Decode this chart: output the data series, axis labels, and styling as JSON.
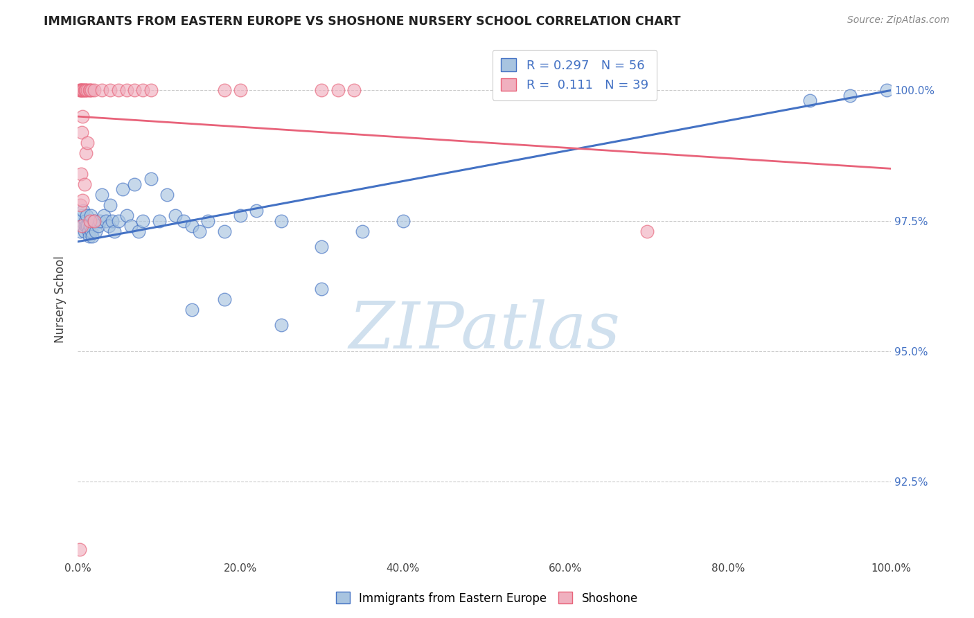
{
  "title": "IMMIGRANTS FROM EASTERN EUROPE VS SHOSHONE NURSERY SCHOOL CORRELATION CHART",
  "source": "Source: ZipAtlas.com",
  "ylabel": "Nursery School",
  "xlim": [
    0.0,
    100.0
  ],
  "ylim": [
    91.0,
    101.0
  ],
  "yticks": [
    92.5,
    95.0,
    97.5,
    100.0
  ],
  "ytick_labels": [
    "92.5%",
    "95.0%",
    "97.5%",
    "100.0%"
  ],
  "xticks": [
    0.0,
    20.0,
    40.0,
    60.0,
    80.0,
    100.0
  ],
  "xtick_labels": [
    "0.0%",
    "20.0%",
    "40.0%",
    "60.0%",
    "80.0%",
    "100.0%"
  ],
  "blue_R": "0.297",
  "blue_N": "56",
  "pink_R": "0.111",
  "pink_N": "39",
  "blue_scatter": [
    [
      0.3,
      97.3
    ],
    [
      0.4,
      97.5
    ],
    [
      0.5,
      97.6
    ],
    [
      0.6,
      97.4
    ],
    [
      0.7,
      97.7
    ],
    [
      0.8,
      97.3
    ],
    [
      0.9,
      97.5
    ],
    [
      1.0,
      97.4
    ],
    [
      1.1,
      97.6
    ],
    [
      1.2,
      97.4
    ],
    [
      1.3,
      97.3
    ],
    [
      1.4,
      97.2
    ],
    [
      1.5,
      97.4
    ],
    [
      1.6,
      97.6
    ],
    [
      1.7,
      97.3
    ],
    [
      1.8,
      97.2
    ],
    [
      2.0,
      97.5
    ],
    [
      2.2,
      97.3
    ],
    [
      2.5,
      97.4
    ],
    [
      2.7,
      97.5
    ],
    [
      3.0,
      98.0
    ],
    [
      3.2,
      97.6
    ],
    [
      3.5,
      97.5
    ],
    [
      3.8,
      97.4
    ],
    [
      4.0,
      97.8
    ],
    [
      4.2,
      97.5
    ],
    [
      4.5,
      97.3
    ],
    [
      5.0,
      97.5
    ],
    [
      5.5,
      98.1
    ],
    [
      6.0,
      97.6
    ],
    [
      6.5,
      97.4
    ],
    [
      7.0,
      98.2
    ],
    [
      7.5,
      97.3
    ],
    [
      8.0,
      97.5
    ],
    [
      9.0,
      98.3
    ],
    [
      10.0,
      97.5
    ],
    [
      11.0,
      98.0
    ],
    [
      12.0,
      97.6
    ],
    [
      13.0,
      97.5
    ],
    [
      14.0,
      97.4
    ],
    [
      15.0,
      97.3
    ],
    [
      16.0,
      97.5
    ],
    [
      18.0,
      97.3
    ],
    [
      20.0,
      97.6
    ],
    [
      22.0,
      97.7
    ],
    [
      25.0,
      97.5
    ],
    [
      30.0,
      97.0
    ],
    [
      35.0,
      97.3
    ],
    [
      40.0,
      97.5
    ],
    [
      14.0,
      95.8
    ],
    [
      18.0,
      96.0
    ],
    [
      25.0,
      95.5
    ],
    [
      30.0,
      96.2
    ],
    [
      90.0,
      99.8
    ],
    [
      95.0,
      99.9
    ],
    [
      99.5,
      100.0
    ]
  ],
  "pink_scatter": [
    [
      0.2,
      100.0
    ],
    [
      0.3,
      100.0
    ],
    [
      0.4,
      100.0
    ],
    [
      0.5,
      100.0
    ],
    [
      0.6,
      100.0
    ],
    [
      0.7,
      100.0
    ],
    [
      0.8,
      100.0
    ],
    [
      0.9,
      100.0
    ],
    [
      1.0,
      100.0
    ],
    [
      1.2,
      100.0
    ],
    [
      1.4,
      100.0
    ],
    [
      1.5,
      100.0
    ],
    [
      1.7,
      100.0
    ],
    [
      2.0,
      100.0
    ],
    [
      3.0,
      100.0
    ],
    [
      4.0,
      100.0
    ],
    [
      5.0,
      100.0
    ],
    [
      6.0,
      100.0
    ],
    [
      7.0,
      100.0
    ],
    [
      8.0,
      100.0
    ],
    [
      9.0,
      100.0
    ],
    [
      18.0,
      100.0
    ],
    [
      20.0,
      100.0
    ],
    [
      30.0,
      100.0
    ],
    [
      32.0,
      100.0
    ],
    [
      34.0,
      100.0
    ],
    [
      0.5,
      99.2
    ],
    [
      1.0,
      98.8
    ],
    [
      0.4,
      98.4
    ],
    [
      0.8,
      98.2
    ],
    [
      0.3,
      97.8
    ],
    [
      0.6,
      97.9
    ],
    [
      0.5,
      97.4
    ],
    [
      1.5,
      97.5
    ],
    [
      2.0,
      97.5
    ],
    [
      70.0,
      97.3
    ],
    [
      0.2,
      91.2
    ],
    [
      0.6,
      99.5
    ],
    [
      1.2,
      99.0
    ]
  ],
  "blue_line_color": "#4472C4",
  "pink_line_color": "#E8637A",
  "blue_dot_facecolor": "#A8C4E0",
  "pink_dot_facecolor": "#F0B0BF",
  "background_color": "#FFFFFF",
  "grid_color": "#CCCCCC",
  "title_color": "#222222",
  "axis_label_color": "#444444",
  "right_axis_color": "#4472C4",
  "source_color": "#888888",
  "watermark_text": "ZIPatlas",
  "watermark_color": "#D0E0EE",
  "legend_label_color": "#4472C4"
}
